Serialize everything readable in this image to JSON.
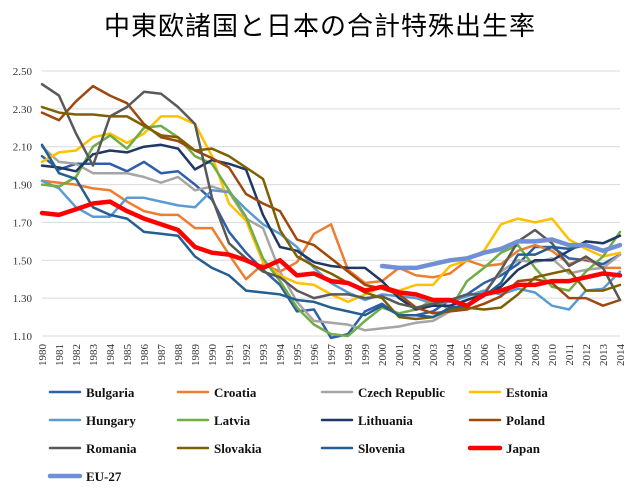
{
  "chart_data": {
    "type": "line",
    "title": "中東欧諸国と日本の合計特殊出生率",
    "xlabel": "",
    "ylabel": "",
    "ylim": [
      1.1,
      2.5
    ],
    "yticks": [
      "1.10",
      "1.30",
      "1.50",
      "1.70",
      "1.90",
      "2.10",
      "2.30",
      "2.50"
    ],
    "ytick_values": [
      1.1,
      1.3,
      1.5,
      1.7,
      1.9,
      2.1,
      2.3,
      2.5
    ],
    "grid": true,
    "legend_position": "bottom",
    "categories": [
      "1980",
      "1981",
      "1982",
      "1983",
      "1984",
      "1985",
      "1986",
      "1987",
      "1988",
      "1989",
      "1990",
      "1991",
      "1992",
      "1993",
      "1994",
      "1995",
      "1996",
      "1997",
      "1998",
      "1999",
      "2000",
      "2001",
      "2002",
      "2003",
      "2004",
      "2005",
      "2006",
      "2007",
      "2008",
      "2009",
      "2010",
      "2011",
      "2012",
      "2013",
      "2014"
    ],
    "series": [
      {
        "name": "Bulgaria",
        "color": "#2e5fa8",
        "width": 2.5,
        "values": [
          2.05,
          1.98,
          2.01,
          2.01,
          2.01,
          1.97,
          2.02,
          1.96,
          1.97,
          1.9,
          1.82,
          1.65,
          1.54,
          1.45,
          1.37,
          1.23,
          1.24,
          1.09,
          1.11,
          1.23,
          1.27,
          1.21,
          1.21,
          1.23,
          1.29,
          1.32,
          1.38,
          1.42,
          1.48,
          1.57,
          1.57,
          1.51,
          1.5,
          1.48,
          1.53
        ]
      },
      {
        "name": "Croatia",
        "color": "#ed7d31",
        "width": 2.5,
        "values": [
          1.92,
          1.91,
          1.9,
          1.88,
          1.87,
          1.81,
          1.76,
          1.74,
          1.74,
          1.67,
          1.67,
          1.53,
          1.4,
          1.48,
          1.44,
          1.49,
          1.64,
          1.69,
          1.45,
          1.38,
          1.39,
          1.46,
          1.42,
          1.41,
          1.43,
          1.5,
          1.47,
          1.48,
          1.55,
          1.58,
          1.55,
          1.48,
          1.51,
          1.46,
          1.46
        ]
      },
      {
        "name": "Czech Republic",
        "color": "#a5a5a5",
        "width": 2.5,
        "values": [
          2.1,
          2.02,
          2.01,
          1.96,
          1.96,
          1.96,
          1.94,
          1.91,
          1.94,
          1.87,
          1.89,
          1.86,
          1.72,
          1.67,
          1.44,
          1.28,
          1.18,
          1.17,
          1.16,
          1.13,
          1.14,
          1.15,
          1.17,
          1.18,
          1.23,
          1.29,
          1.33,
          1.44,
          1.5,
          1.49,
          1.51,
          1.43,
          1.45,
          1.46,
          1.53
        ]
      },
      {
        "name": "Estonia",
        "color": "#ffc000",
        "width": 2.5,
        "values": [
          2.02,
          2.07,
          2.08,
          2.15,
          2.17,
          2.12,
          2.17,
          2.26,
          2.26,
          2.22,
          2.05,
          1.8,
          1.71,
          1.49,
          1.42,
          1.38,
          1.37,
          1.32,
          1.28,
          1.32,
          1.36,
          1.34,
          1.37,
          1.37,
          1.47,
          1.5,
          1.55,
          1.69,
          1.72,
          1.7,
          1.72,
          1.61,
          1.56,
          1.52,
          1.54
        ]
      },
      {
        "name": "Hungary",
        "color": "#5b9bd5",
        "width": 2.5,
        "values": [
          1.92,
          1.88,
          1.78,
          1.73,
          1.73,
          1.83,
          1.83,
          1.81,
          1.79,
          1.78,
          1.87,
          1.86,
          1.77,
          1.69,
          1.64,
          1.57,
          1.46,
          1.38,
          1.33,
          1.29,
          1.32,
          1.31,
          1.3,
          1.27,
          1.28,
          1.31,
          1.34,
          1.32,
          1.35,
          1.33,
          1.26,
          1.24,
          1.34,
          1.35,
          1.44
        ]
      },
      {
        "name": "Latvia",
        "color": "#70ad47",
        "width": 2.5,
        "values": [
          1.9,
          1.89,
          1.94,
          2.1,
          2.16,
          2.09,
          2.2,
          2.21,
          2.15,
          2.05,
          2.01,
          1.87,
          1.73,
          1.51,
          1.39,
          1.25,
          1.16,
          1.11,
          1.1,
          1.18,
          1.25,
          1.22,
          1.24,
          1.29,
          1.24,
          1.39,
          1.46,
          1.54,
          1.58,
          1.46,
          1.36,
          1.34,
          1.44,
          1.52,
          1.65
        ]
      },
      {
        "name": "Lithuania",
        "color": "#1f3864",
        "width": 2.5,
        "values": [
          2.0,
          1.99,
          1.97,
          2.06,
          2.08,
          2.07,
          2.1,
          2.11,
          2.09,
          1.98,
          2.03,
          2.01,
          1.98,
          1.74,
          1.57,
          1.55,
          1.49,
          1.47,
          1.46,
          1.46,
          1.39,
          1.3,
          1.24,
          1.26,
          1.26,
          1.29,
          1.32,
          1.36,
          1.45,
          1.5,
          1.5,
          1.55,
          1.6,
          1.59,
          1.63
        ]
      },
      {
        "name": "Poland",
        "color": "#9e480e",
        "width": 2.5,
        "values": [
          2.28,
          2.24,
          2.34,
          2.42,
          2.37,
          2.33,
          2.22,
          2.15,
          2.13,
          2.08,
          2.04,
          1.99,
          1.85,
          1.8,
          1.76,
          1.61,
          1.58,
          1.51,
          1.44,
          1.37,
          1.35,
          1.32,
          1.25,
          1.22,
          1.23,
          1.24,
          1.27,
          1.31,
          1.39,
          1.4,
          1.38,
          1.3,
          1.3,
          1.26,
          1.29
        ]
      },
      {
        "name": "Romania",
        "color": "#595959",
        "width": 2.5,
        "values": [
          2.43,
          2.37,
          2.17,
          2.0,
          2.26,
          2.31,
          2.39,
          2.38,
          2.31,
          2.22,
          1.83,
          1.59,
          1.51,
          1.44,
          1.41,
          1.34,
          1.3,
          1.32,
          1.32,
          1.3,
          1.31,
          1.27,
          1.25,
          1.27,
          1.29,
          1.32,
          1.32,
          1.45,
          1.6,
          1.66,
          1.59,
          1.47,
          1.52,
          1.46,
          1.29
        ]
      },
      {
        "name": "Slovakia",
        "color": "#7f6000",
        "width": 2.5,
        "values": [
          2.31,
          2.28,
          2.27,
          2.27,
          2.26,
          2.26,
          2.21,
          2.16,
          2.15,
          2.08,
          2.09,
          2.05,
          1.99,
          1.93,
          1.66,
          1.52,
          1.47,
          1.43,
          1.38,
          1.33,
          1.3,
          1.2,
          1.19,
          1.2,
          1.24,
          1.25,
          1.24,
          1.25,
          1.32,
          1.41,
          1.43,
          1.45,
          1.34,
          1.34,
          1.37
        ]
      },
      {
        "name": "Slovenia",
        "color": "#255e91",
        "width": 2.5,
        "values": [
          2.11,
          1.96,
          1.93,
          1.78,
          1.74,
          1.72,
          1.65,
          1.64,
          1.63,
          1.52,
          1.46,
          1.42,
          1.34,
          1.33,
          1.32,
          1.29,
          1.28,
          1.25,
          1.23,
          1.21,
          1.26,
          1.21,
          1.21,
          1.2,
          1.25,
          1.26,
          1.31,
          1.38,
          1.53,
          1.53,
          1.57,
          1.56,
          1.58,
          1.55,
          1.58
        ]
      },
      {
        "name": "Japan",
        "color": "#ff0000",
        "width": 4.5,
        "values": [
          1.75,
          1.74,
          1.77,
          1.8,
          1.81,
          1.76,
          1.72,
          1.69,
          1.66,
          1.57,
          1.54,
          1.53,
          1.5,
          1.46,
          1.5,
          1.42,
          1.43,
          1.39,
          1.38,
          1.34,
          1.36,
          1.33,
          1.32,
          1.29,
          1.29,
          1.26,
          1.32,
          1.34,
          1.37,
          1.37,
          1.39,
          1.39,
          1.41,
          1.43,
          1.42
        ]
      },
      {
        "name": "EU-27",
        "color": "#6f8fd6",
        "width": 4.5,
        "values": [
          null,
          null,
          null,
          null,
          null,
          null,
          null,
          null,
          null,
          null,
          null,
          null,
          null,
          null,
          null,
          null,
          null,
          null,
          null,
          null,
          1.47,
          1.46,
          1.46,
          1.48,
          1.5,
          1.51,
          1.54,
          1.56,
          1.6,
          1.6,
          1.61,
          1.58,
          1.58,
          1.55,
          1.58
        ]
      }
    ]
  }
}
